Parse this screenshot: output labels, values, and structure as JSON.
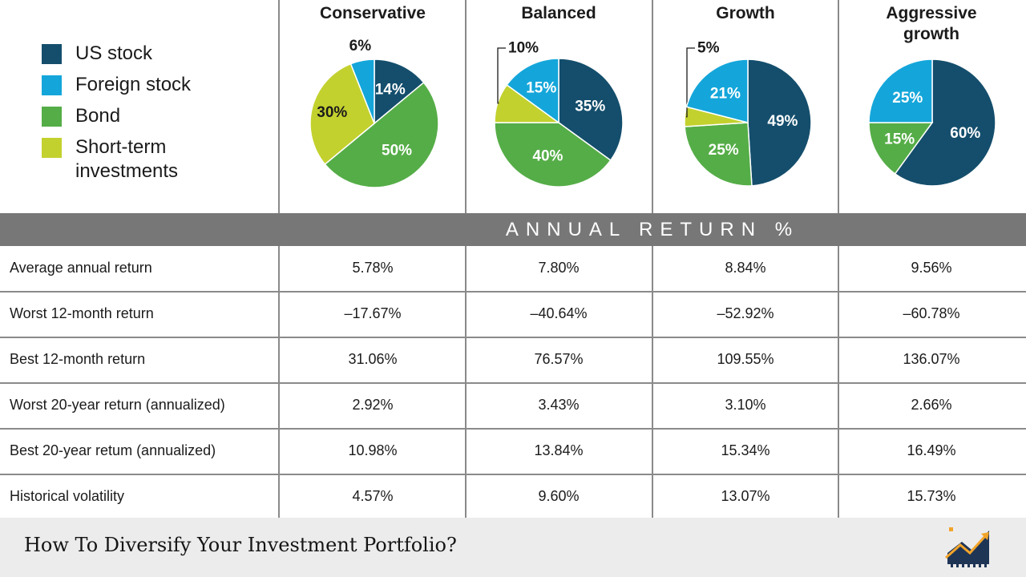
{
  "colors": {
    "us_stock": "#144e6c",
    "foreign_stock": "#14a6da",
    "bond": "#55ad47",
    "short_term": "#c3d12e",
    "band": "#777777"
  },
  "legend": [
    {
      "key": "us_stock",
      "label": "US stock"
    },
    {
      "key": "foreign_stock",
      "label": "Foreign stock"
    },
    {
      "key": "bond",
      "label": "Bond"
    },
    {
      "key": "short_term",
      "label": "Short-term\ninvestments"
    }
  ],
  "chart_data": [
    {
      "type": "pie",
      "title": "Conservative",
      "slices": [
        {
          "key": "us_stock",
          "label": "14%",
          "value": 14
        },
        {
          "key": "bond",
          "label": "50%",
          "value": 50
        },
        {
          "key": "short_term",
          "label": "30%",
          "value": 30
        },
        {
          "key": "foreign_stock",
          "label": "6%",
          "value": 6
        }
      ]
    },
    {
      "type": "pie",
      "title": "Balanced",
      "slices": [
        {
          "key": "us_stock",
          "label": "35%",
          "value": 35
        },
        {
          "key": "bond",
          "label": "40%",
          "value": 40
        },
        {
          "key": "short_term",
          "label": "10%",
          "value": 10
        },
        {
          "key": "foreign_stock",
          "label": "15%",
          "value": 15
        }
      ]
    },
    {
      "type": "pie",
      "title": "Growth",
      "slices": [
        {
          "key": "us_stock",
          "label": "49%",
          "value": 49
        },
        {
          "key": "bond",
          "label": "25%",
          "value": 25
        },
        {
          "key": "short_term",
          "label": "5%",
          "value": 5
        },
        {
          "key": "foreign_stock",
          "label": "21%",
          "value": 21
        }
      ]
    },
    {
      "type": "pie",
      "title": "Aggressive\ngrowth",
      "slices": [
        {
          "key": "us_stock",
          "label": "60%",
          "value": 60
        },
        {
          "key": "bond",
          "label": "15%",
          "value": 15
        },
        {
          "key": "foreign_stock",
          "label": "25%",
          "value": 25
        }
      ]
    }
  ],
  "table": {
    "section_title": "ANNUAL RETURN %",
    "rows": [
      {
        "label": "Average annual return",
        "values": [
          "5.78%",
          "7.80%",
          "8.84%",
          "9.56%"
        ]
      },
      {
        "label": "Worst 12-month return",
        "values": [
          "–17.67%",
          "–40.64%",
          "–52.92%",
          "–60.78%"
        ]
      },
      {
        "label": "Best 12-month return",
        "values": [
          "31.06%",
          "76.57%",
          "109.55%",
          "136.07%"
        ]
      },
      {
        "label": "Worst 20-year return (annualized)",
        "values": [
          "2.92%",
          "3.43%",
          "3.10%",
          "2.66%"
        ]
      },
      {
        "label": "Best 20-year retum (annualized)",
        "values": [
          "10.98%",
          "13.84%",
          "15.34%",
          "16.49%"
        ]
      },
      {
        "label": "Historical volatility",
        "values": [
          "4.57%",
          "9.60%",
          "13.07%",
          "15.73%"
        ]
      }
    ]
  },
  "footer": {
    "title": "How To Diversify Your Investment Portfolio?",
    "logo_icon": "growth-chart-logo-icon"
  }
}
